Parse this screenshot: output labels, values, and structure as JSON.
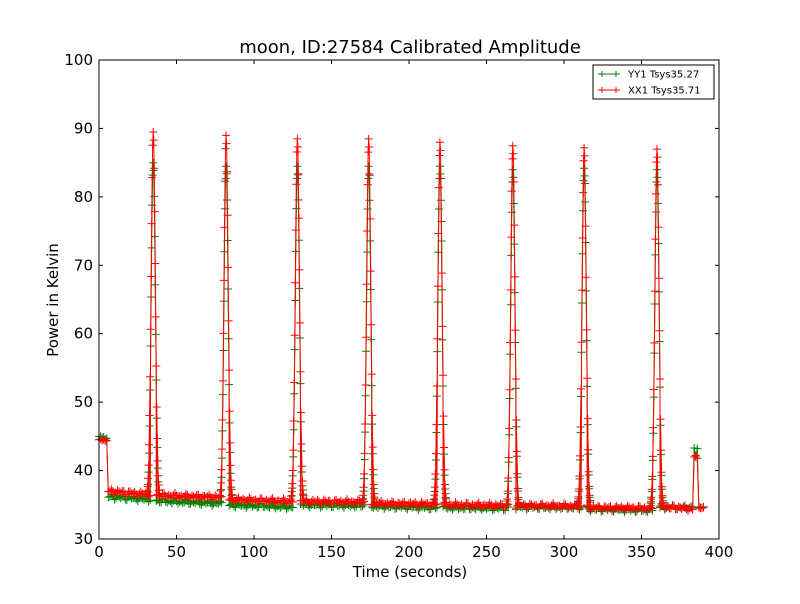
{
  "chart_data": {
    "type": "line",
    "title": "moon, ID:27584 Calibrated Amplitude",
    "xlabel": "Time (seconds)",
    "ylabel": "Power in Kelvin",
    "xlim": [
      0,
      400
    ],
    "ylim": [
      30,
      100
    ],
    "xticks": [
      "0",
      "50",
      "100",
      "150",
      "200",
      "250",
      "300",
      "350",
      "400"
    ],
    "yticks": [
      "30",
      "40",
      "50",
      "60",
      "70",
      "80",
      "90",
      "100"
    ],
    "grid": false,
    "legend_position": "top-right",
    "marker": "plus",
    "series": [
      {
        "name": "YY1 Tsys35.27",
        "color": "#008000",
        "start": {
          "x": [
            0,
            1,
            2,
            3,
            4,
            5
          ],
          "y": [
            45.0,
            45.0,
            44.8,
            44.9,
            44.6,
            44.7
          ]
        },
        "end_spike": {
          "x": [
            384,
            385,
            386
          ],
          "y": [
            43.3,
            42.0,
            43.2
          ]
        },
        "tail": {
          "x": [
            387,
            388,
            389,
            390
          ],
          "y": [
            34.7,
            34.6,
            34.6,
            34.7
          ]
        },
        "segments": [
          {
            "from": 6,
            "to": 33,
            "base_start": 36.2,
            "base_end": 35.8
          },
          {
            "from": 37,
            "to": 79,
            "base_start": 35.6,
            "base_end": 35.2
          },
          {
            "from": 84,
            "to": 125,
            "base_start": 35.0,
            "base_end": 34.7
          },
          {
            "from": 130,
            "to": 171,
            "base_start": 35.0,
            "base_end": 34.9
          },
          {
            "from": 176,
            "to": 218,
            "base_start": 34.8,
            "base_end": 34.6
          },
          {
            "from": 222,
            "to": 264,
            "base_start": 34.6,
            "base_end": 34.5
          },
          {
            "from": 269,
            "to": 311,
            "base_start": 34.7,
            "base_end": 34.6
          },
          {
            "from": 315,
            "to": 357,
            "base_start": 34.4,
            "base_end": 34.2
          },
          {
            "from": 362,
            "to": 383,
            "base_start": 34.6,
            "base_end": 34.6
          }
        ],
        "peaks": [
          {
            "x": 35,
            "y": 85.0
          },
          {
            "x": 82,
            "y": 84.5
          },
          {
            "x": 128,
            "y": 84.5
          },
          {
            "x": 174,
            "y": 84.5
          },
          {
            "x": 220,
            "y": 84.5
          },
          {
            "x": 267,
            "y": 84.0
          },
          {
            "x": 313,
            "y": 84.2
          },
          {
            "x": 360,
            "y": 84.0
          }
        ]
      },
      {
        "name": "XX1 Tsys35.71",
        "color": "#ff0000",
        "start": {
          "x": [
            0,
            1,
            2,
            3,
            4,
            5
          ],
          "y": [
            44.5,
            44.6,
            44.4,
            44.5,
            44.3,
            44.4
          ]
        },
        "end_spike": {
          "x": [
            384,
            385,
            386
          ],
          "y": [
            42.0,
            42.2,
            41.8
          ]
        },
        "tail": {
          "x": [
            387,
            388,
            389,
            390
          ],
          "y": [
            34.6,
            34.5,
            34.5,
            34.6
          ]
        },
        "segments": [
          {
            "from": 6,
            "to": 33,
            "base_start": 37.0,
            "base_end": 36.5
          },
          {
            "from": 37,
            "to": 79,
            "base_start": 36.4,
            "base_end": 36.1
          },
          {
            "from": 84,
            "to": 125,
            "base_start": 35.8,
            "base_end": 35.5
          },
          {
            "from": 130,
            "to": 171,
            "base_start": 35.5,
            "base_end": 35.4
          },
          {
            "from": 176,
            "to": 218,
            "base_start": 35.2,
            "base_end": 35.1
          },
          {
            "from": 222,
            "to": 264,
            "base_start": 35.0,
            "base_end": 34.9
          },
          {
            "from": 269,
            "to": 311,
            "base_start": 34.9,
            "base_end": 34.8
          },
          {
            "from": 315,
            "to": 357,
            "base_start": 34.6,
            "base_end": 34.5
          },
          {
            "from": 362,
            "to": 383,
            "base_start": 34.8,
            "base_end": 34.4
          }
        ],
        "peaks": [
          {
            "x": 35,
            "y": 89.5
          },
          {
            "x": 82,
            "y": 89.0
          },
          {
            "x": 128,
            "y": 88.5
          },
          {
            "x": 174,
            "y": 88.5
          },
          {
            "x": 220,
            "y": 88.0
          },
          {
            "x": 267,
            "y": 87.5
          },
          {
            "x": 313,
            "y": 87.2
          },
          {
            "x": 360,
            "y": 87.0
          }
        ]
      }
    ]
  }
}
